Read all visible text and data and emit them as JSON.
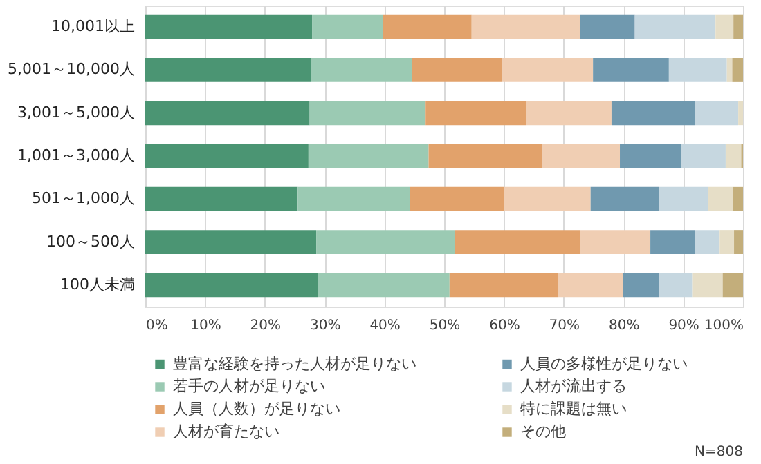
{
  "chart_data": {
    "type": "bar",
    "orientation": "horizontal",
    "stacked": true,
    "categories": [
      "10,001以上",
      "5,001～10,000人",
      "3,001～5,000人",
      "1,001～3,000人",
      "501～1,000人",
      "100～500人",
      "100人未満"
    ],
    "series": [
      {
        "name": "豊富な経験を持った人材が足りない",
        "color": "#4b9573",
        "values": [
          27.9,
          27.7,
          27.5,
          27.3,
          25.5,
          28.6,
          28.9
        ]
      },
      {
        "name": "若手の人材が足りない",
        "color": "#9bcab3",
        "values": [
          11.8,
          16.9,
          19.4,
          20.1,
          18.8,
          23.2,
          22.0
        ]
      },
      {
        "name": "人員（人数）が足りない",
        "color": "#e2a26b",
        "values": [
          14.9,
          15.1,
          16.8,
          19.0,
          15.7,
          20.9,
          18.1
        ]
      },
      {
        "name": "人材が育たない",
        "color": "#f0ceb3",
        "values": [
          18.1,
          15.2,
          14.3,
          13.0,
          14.5,
          11.8,
          10.9
        ]
      },
      {
        "name": "人員の多様性が足りない",
        "color": "#7099af",
        "values": [
          9.2,
          12.7,
          13.9,
          10.2,
          11.4,
          7.4,
          6.0
        ]
      },
      {
        "name": "人材が流出する",
        "color": "#c6d7e0",
        "values": [
          13.5,
          9.7,
          7.3,
          7.5,
          8.2,
          4.2,
          5.6
        ]
      },
      {
        "name": "特に課題は無い",
        "color": "#e6dec7",
        "values": [
          3.0,
          0.9,
          0.8,
          2.6,
          4.2,
          2.4,
          5.1
        ]
      },
      {
        "name": "その他",
        "color": "#c3ae7b",
        "values": [
          1.6,
          1.8,
          null,
          0.3,
          1.7,
          1.5,
          3.4
        ]
      }
    ],
    "xlim": [
      0,
      100
    ],
    "xticks": [
      {
        "value": 0,
        "label": "0%"
      },
      {
        "value": 10,
        "label": "10%"
      },
      {
        "value": 20,
        "label": "20%"
      },
      {
        "value": 30,
        "label": "30%"
      },
      {
        "value": 40,
        "label": "40%"
      },
      {
        "value": 50,
        "label": "50%"
      },
      {
        "value": 60,
        "label": "60%"
      },
      {
        "value": 70,
        "label": "70%"
      },
      {
        "value": 80,
        "label": "80%"
      },
      {
        "value": 90,
        "label": "90%"
      },
      {
        "value": 100,
        "label": "100%"
      }
    ],
    "grid": "x",
    "legend": "bottom",
    "annotations": [
      "N=808"
    ]
  }
}
